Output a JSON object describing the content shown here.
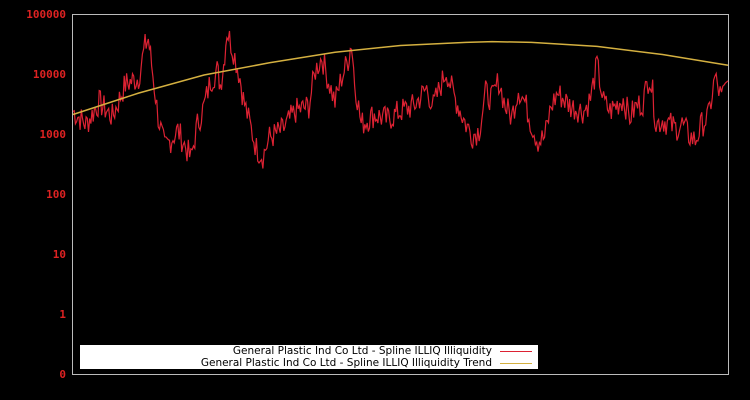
{
  "chart_data": {
    "type": "line",
    "title": "",
    "xlabel": "",
    "ylabel": "",
    "yscale": "log",
    "yticks": [
      "100000",
      "10000",
      "1000",
      "100",
      "10",
      "1",
      "0"
    ],
    "ylim": [
      0,
      100000
    ],
    "grid": false,
    "legend_position": "lower center",
    "series": [
      {
        "name": "General Plastic Ind Co Ltd - Spline ILLIQ Illiquidity",
        "color": "#dd2233",
        "approx_points_x_frac_y_value": [
          [
            0.0,
            2500
          ],
          [
            0.02,
            1500
          ],
          [
            0.04,
            3500
          ],
          [
            0.06,
            2000
          ],
          [
            0.08,
            7000
          ],
          [
            0.1,
            9000
          ],
          [
            0.11,
            30000
          ],
          [
            0.115,
            40000
          ],
          [
            0.12,
            15000
          ],
          [
            0.13,
            2000
          ],
          [
            0.14,
            600
          ],
          [
            0.16,
            1200
          ],
          [
            0.17,
            700
          ],
          [
            0.18,
            400
          ],
          [
            0.19,
            1500
          ],
          [
            0.2,
            3000
          ],
          [
            0.21,
            8000
          ],
          [
            0.22,
            12000
          ],
          [
            0.225,
            7000
          ],
          [
            0.23,
            15000
          ],
          [
            0.235,
            55000
          ],
          [
            0.245,
            25000
          ],
          [
            0.255,
            9000
          ],
          [
            0.26,
            4000
          ],
          [
            0.27,
            1500
          ],
          [
            0.28,
            600
          ],
          [
            0.29,
            450
          ],
          [
            0.3,
            900
          ],
          [
            0.32,
            1200
          ],
          [
            0.34,
            2500
          ],
          [
            0.36,
            3000
          ],
          [
            0.37,
            12000
          ],
          [
            0.38,
            20000
          ],
          [
            0.39,
            8000
          ],
          [
            0.4,
            3500
          ],
          [
            0.41,
            9000
          ],
          [
            0.42,
            18000
          ],
          [
            0.425,
            35000
          ],
          [
            0.43,
            8000
          ],
          [
            0.44,
            1500
          ],
          [
            0.46,
            2200
          ],
          [
            0.48,
            1800
          ],
          [
            0.5,
            2500
          ],
          [
            0.52,
            3000
          ],
          [
            0.54,
            6000
          ],
          [
            0.55,
            3000
          ],
          [
            0.56,
            6000
          ],
          [
            0.57,
            12000
          ],
          [
            0.58,
            5000
          ],
          [
            0.6,
            1500
          ],
          [
            0.61,
            1000
          ],
          [
            0.62,
            1200
          ],
          [
            0.63,
            5000
          ],
          [
            0.64,
            4000
          ],
          [
            0.65,
            8000
          ],
          [
            0.66,
            3000
          ],
          [
            0.67,
            2000
          ],
          [
            0.68,
            6000
          ],
          [
            0.69,
            3500
          ],
          [
            0.7,
            1500
          ],
          [
            0.71,
            800
          ],
          [
            0.72,
            900
          ],
          [
            0.73,
            3000
          ],
          [
            0.74,
            5000
          ],
          [
            0.76,
            3000
          ],
          [
            0.78,
            2500
          ],
          [
            0.79,
            4000
          ],
          [
            0.8,
            15000
          ],
          [
            0.81,
            3500
          ],
          [
            0.82,
            2500
          ],
          [
            0.84,
            4000
          ],
          [
            0.85,
            2000
          ],
          [
            0.86,
            3000
          ],
          [
            0.87,
            3500
          ],
          [
            0.88,
            10000
          ],
          [
            0.885,
            5000
          ],
          [
            0.89,
            1500
          ],
          [
            0.9,
            1800
          ],
          [
            0.92,
            1300
          ],
          [
            0.93,
            1500
          ],
          [
            0.94,
            1000
          ],
          [
            0.95,
            800
          ],
          [
            0.96,
            1500
          ],
          [
            0.97,
            2000
          ],
          [
            0.98,
            9000
          ],
          [
            0.99,
            4000
          ],
          [
            1.0,
            8000
          ]
        ]
      },
      {
        "name": "General Plastic Ind Co Ltd - Spline ILLIQ Illiquidity Trend",
        "color": "#d4b040",
        "approx_points_x_frac_y_value": [
          [
            0.0,
            2200
          ],
          [
            0.1,
            5000
          ],
          [
            0.2,
            10000
          ],
          [
            0.3,
            16000
          ],
          [
            0.4,
            24000
          ],
          [
            0.5,
            31000
          ],
          [
            0.6,
            35000
          ],
          [
            0.64,
            36000
          ],
          [
            0.7,
            35000
          ],
          [
            0.8,
            30000
          ],
          [
            0.9,
            22000
          ],
          [
            1.0,
            14500
          ]
        ]
      }
    ]
  },
  "legend": {
    "items": [
      {
        "label": "General Plastic Ind Co Ltd - Spline ILLIQ Illiquidity",
        "color": "#dd2233"
      },
      {
        "label": "General Plastic Ind Co Ltd - Spline ILLIQ Illiquidity Trend",
        "color": "#d4b040"
      }
    ]
  }
}
